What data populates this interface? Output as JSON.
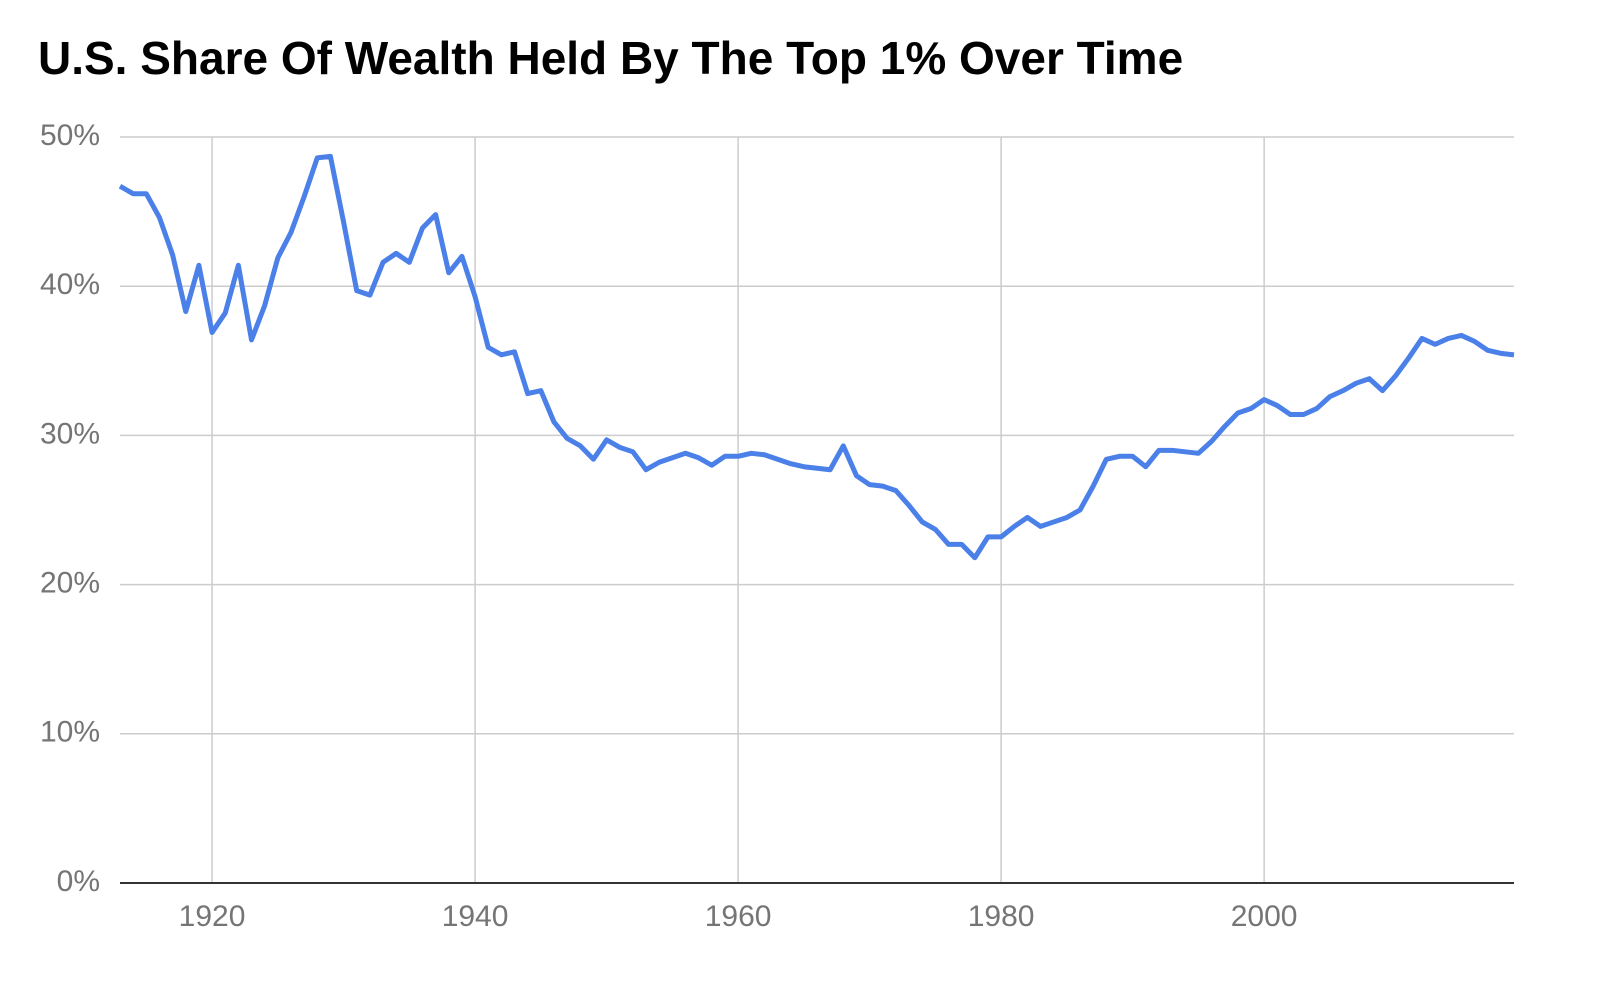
{
  "chart_data": {
    "type": "line",
    "title": "U.S. Share Of Wealth Held By The Top 1% Over Time",
    "x": [
      1913,
      1914,
      1915,
      1916,
      1917,
      1918,
      1919,
      1920,
      1921,
      1922,
      1923,
      1924,
      1925,
      1926,
      1927,
      1928,
      1929,
      1930,
      1931,
      1932,
      1933,
      1934,
      1935,
      1936,
      1937,
      1938,
      1939,
      1940,
      1941,
      1942,
      1943,
      1944,
      1945,
      1946,
      1947,
      1948,
      1949,
      1950,
      1951,
      1952,
      1953,
      1954,
      1955,
      1956,
      1957,
      1958,
      1959,
      1960,
      1961,
      1962,
      1963,
      1964,
      1965,
      1966,
      1967,
      1968,
      1969,
      1970,
      1971,
      1972,
      1973,
      1974,
      1975,
      1976,
      1977,
      1978,
      1979,
      1980,
      1981,
      1982,
      1983,
      1984,
      1985,
      1986,
      1987,
      1988,
      1989,
      1990,
      1991,
      1992,
      1993,
      1994,
      1995,
      1996,
      1997,
      1998,
      1999,
      2000,
      2001,
      2002,
      2003,
      2004,
      2005,
      2006,
      2007,
      2008,
      2009,
      2010,
      2011,
      2012,
      2013,
      2014,
      2015,
      2016,
      2017,
      2018,
      2019
    ],
    "series": [
      {
        "color": "#4a80e8",
        "values": [
          46.7,
          46.2,
          46.2,
          44.6,
          42.1,
          38.3,
          41.4,
          36.9,
          38.2,
          41.4,
          36.4,
          38.7,
          41.9,
          43.6,
          46.0,
          48.6,
          48.7,
          44.3,
          39.7,
          39.4,
          41.6,
          42.2,
          41.6,
          43.9,
          44.8,
          40.9,
          42.0,
          39.3,
          35.9,
          35.4,
          35.6,
          32.8,
          33.0,
          30.9,
          29.8,
          29.3,
          28.4,
          29.7,
          29.2,
          28.9,
          27.7,
          28.2,
          28.5,
          28.8,
          28.5,
          28.0,
          28.6,
          28.6,
          28.8,
          28.7,
          28.4,
          28.1,
          27.9,
          27.8,
          27.7,
          29.3,
          27.3,
          26.7,
          26.6,
          26.3,
          25.3,
          24.2,
          23.7,
          22.7,
          22.7,
          21.8,
          23.2,
          23.2,
          23.9,
          24.5,
          23.9,
          24.2,
          24.5,
          25.0,
          26.6,
          28.4,
          28.6,
          28.6,
          27.9,
          29.0,
          29.0,
          28.9,
          28.8,
          29.6,
          30.6,
          31.5,
          31.8,
          32.4,
          32.0,
          31.4,
          31.4,
          31.8,
          32.6,
          33.0,
          33.5,
          33.8,
          33.0,
          34.0,
          35.2,
          36.5,
          36.1,
          36.5,
          36.7,
          36.3,
          35.7,
          35.5,
          35.4
        ]
      }
    ],
    "xlim": [
      1913,
      2019
    ],
    "xticks": [
      1920,
      1940,
      1960,
      1980,
      2000
    ],
    "ylim": [
      0,
      50
    ],
    "yticks": [
      {
        "value": 0,
        "label": "0%"
      },
      {
        "value": 10,
        "label": "10%"
      },
      {
        "value": 20,
        "label": "20%"
      },
      {
        "value": 30,
        "label": "30%"
      },
      {
        "value": 40,
        "label": "40%"
      },
      {
        "value": 50,
        "label": "50%"
      }
    ],
    "grid": true
  }
}
